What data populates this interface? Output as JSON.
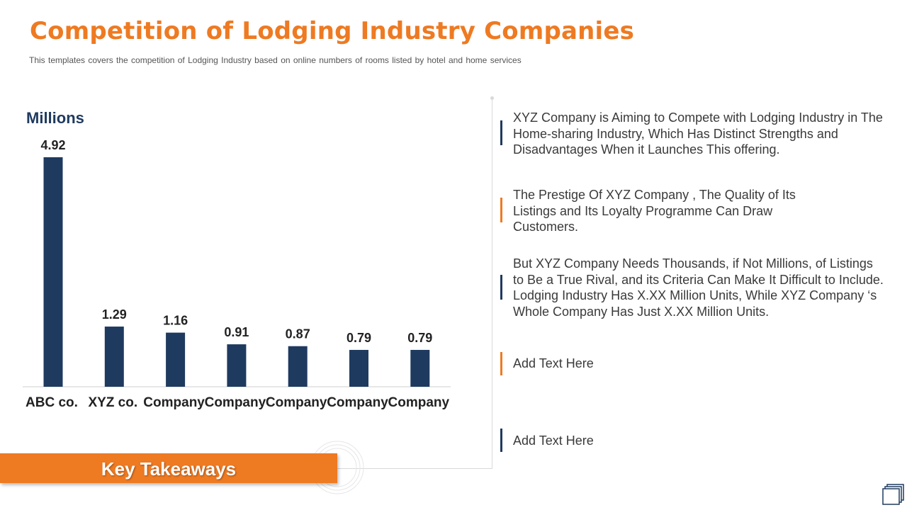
{
  "page": {
    "title": "Competition of Lodging Industry Companies",
    "subtitle": "This templates covers the competition of Lodging Industry based on online numbers of rooms listed by hotel and home services"
  },
  "colors": {
    "accent_orange": "#ee7a22",
    "navy": "#1f3a5f"
  },
  "chart_data": {
    "type": "bar",
    "unit_label": "Millions",
    "categories": [
      "ABC co.",
      "XYZ co.",
      "Company",
      "Company",
      "Company",
      "Company",
      "Company"
    ],
    "values": [
      4.92,
      1.29,
      1.16,
      0.91,
      0.87,
      0.79,
      0.79
    ],
    "value_labels": [
      "4.92",
      "1.29",
      "1.16",
      "0.91",
      "0.87",
      "0.79",
      "0.79"
    ],
    "ylim": [
      0,
      4.92
    ],
    "grid": false,
    "bar_color": "#1f3a5f"
  },
  "takeaways": [
    {
      "text": "XYZ Company  is Aiming to Compete with Lodging Industry in The Home-sharing Industry, Which Has Distinct Strengths and Disadvantages When it Launches This offering.",
      "accent": "navy"
    },
    {
      "text": "The Prestige Of XYZ Company , The Quality of Its Listings and Its Loyalty Programme Can Draw Customers.",
      "accent": "orange"
    },
    {
      "text": "But XYZ Company  Needs Thousands, if Not Millions, of Listings to Be a True Rival, and its Criteria Can Make It Difficult to Include. Lodging Industry Has X.XX Million Units, While XYZ Company ‘s Whole Company Has Just X.XX Million Units.",
      "accent": "navy"
    },
    {
      "text": "Add Text Here",
      "accent": "orange"
    },
    {
      "text": "Add Text Here",
      "accent": "navy"
    }
  ],
  "key_takeaways_label": "Key Takeaways",
  "icons": {
    "corner": "window-stack-icon",
    "rings": "concentric-rings-decoration"
  }
}
